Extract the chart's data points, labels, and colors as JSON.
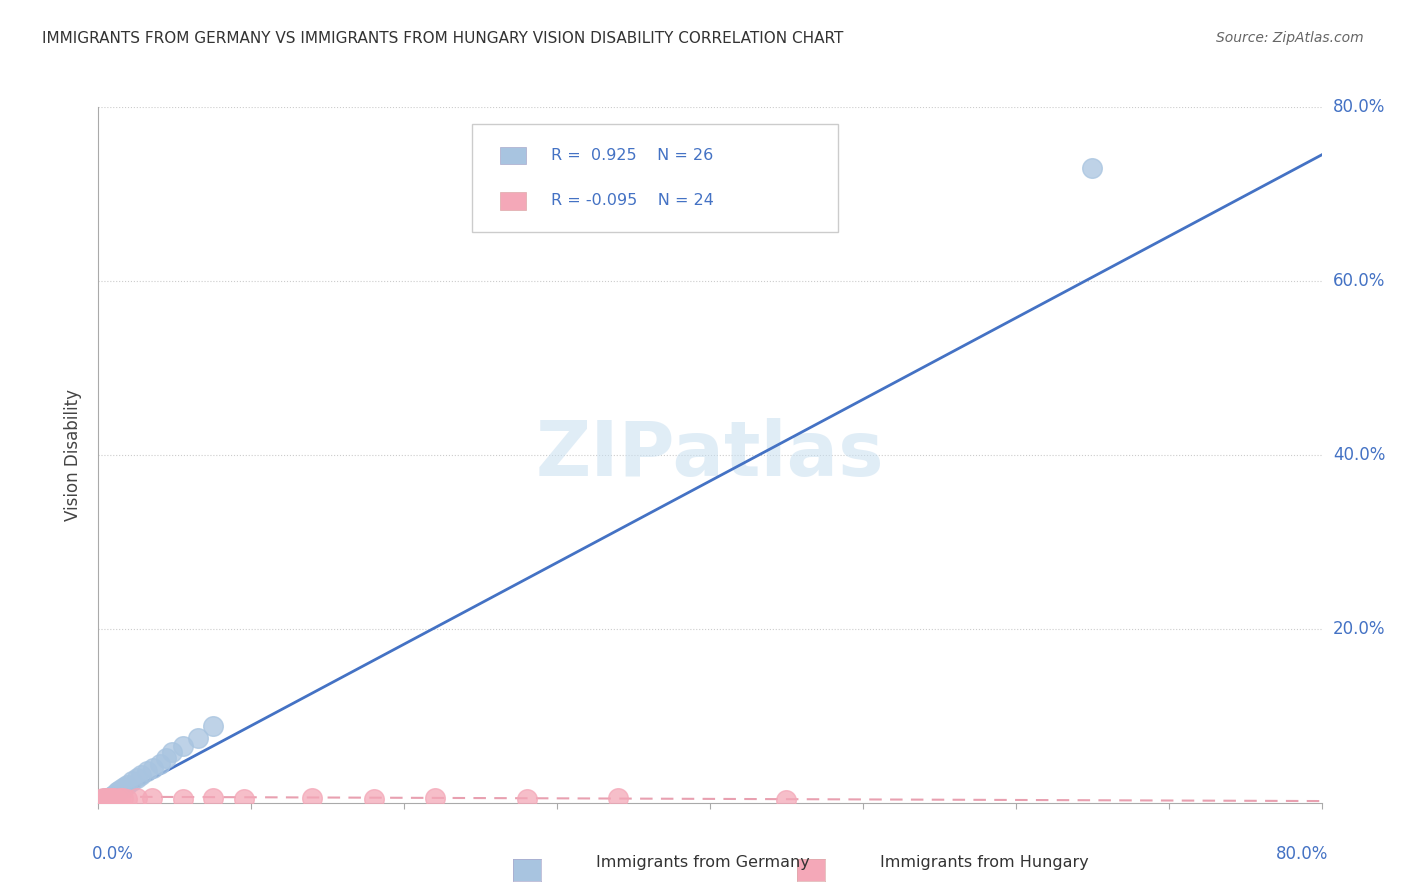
{
  "title": "IMMIGRANTS FROM GERMANY VS IMMIGRANTS FROM HUNGARY VISION DISABILITY CORRELATION CHART",
  "source": "Source: ZipAtlas.com",
  "ylabel": "Vision Disability",
  "ytick_vals": [
    0.2,
    0.4,
    0.6,
    0.8
  ],
  "ytick_labels": [
    "20.0%",
    "40.0%",
    "60.0%",
    "80.0%"
  ],
  "xlim": [
    0.0,
    0.8
  ],
  "ylim": [
    0.0,
    0.8
  ],
  "germany_r": 0.925,
  "germany_n": 26,
  "hungary_r": -0.095,
  "hungary_n": 24,
  "germany_color": "#a8c4e0",
  "hungary_color": "#f4a8b8",
  "germany_line_color": "#4472c4",
  "hungary_line_color": "#e8a0b0",
  "watermark": "ZIPatlas",
  "germany_scatter_x": [
    0.003,
    0.004,
    0.005,
    0.006,
    0.007,
    0.008,
    0.009,
    0.01,
    0.011,
    0.012,
    0.013,
    0.015,
    0.017,
    0.019,
    0.022,
    0.025,
    0.028,
    0.032,
    0.036,
    0.04,
    0.044,
    0.048,
    0.055,
    0.065,
    0.075,
    0.65
  ],
  "germany_scatter_y": [
    0.003,
    0.005,
    0.004,
    0.006,
    0.005,
    0.007,
    0.008,
    0.009,
    0.01,
    0.012,
    0.014,
    0.016,
    0.018,
    0.02,
    0.025,
    0.028,
    0.032,
    0.036,
    0.04,
    0.045,
    0.052,
    0.058,
    0.065,
    0.075,
    0.088,
    0.73
  ],
  "hungary_scatter_x": [
    0.002,
    0.003,
    0.004,
    0.005,
    0.006,
    0.007,
    0.008,
    0.009,
    0.01,
    0.012,
    0.014,
    0.016,
    0.019,
    0.025,
    0.035,
    0.055,
    0.075,
    0.095,
    0.14,
    0.18,
    0.22,
    0.28,
    0.34,
    0.45
  ],
  "hungary_scatter_y": [
    0.004,
    0.005,
    0.004,
    0.006,
    0.003,
    0.005,
    0.004,
    0.006,
    0.005,
    0.004,
    0.006,
    0.005,
    0.004,
    0.006,
    0.005,
    0.004,
    0.005,
    0.004,
    0.005,
    0.004,
    0.005,
    0.004,
    0.005,
    0.003
  ],
  "germany_line_x0": 0.0,
  "germany_line_y0": -0.005,
  "germany_line_x1": 0.8,
  "germany_line_y1": 0.745,
  "hungary_line_x0": 0.0,
  "hungary_line_y0": 0.007,
  "hungary_line_x1": 0.8,
  "hungary_line_y1": 0.002
}
